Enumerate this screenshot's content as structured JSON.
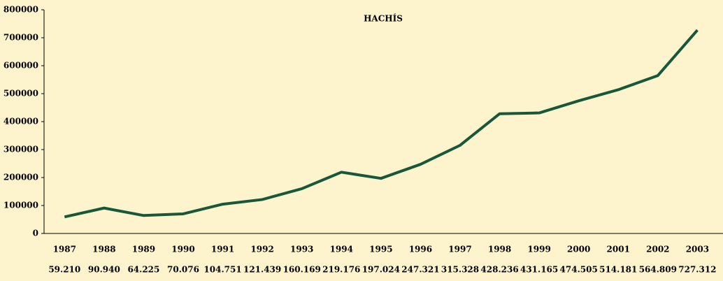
{
  "chart_data": {
    "type": "line",
    "title": "HACHÍS",
    "categories": [
      "1987",
      "1988",
      "1989",
      "1990",
      "1991",
      "1992",
      "1993",
      "1994",
      "1995",
      "1996",
      "1997",
      "1998",
      "1999",
      "2000",
      "2001",
      "2002",
      "2003"
    ],
    "series": [
      {
        "color": "#17573a",
        "values": [
          59210,
          90940,
          64225,
          70076,
          104751,
          121439,
          160169,
          219176,
          197024,
          247321,
          315328,
          428236,
          431165,
          474505,
          514181,
          564809,
          727312
        ],
        "value_labels": [
          "59.210",
          "90.940",
          "64.225",
          "70.076",
          "104.751",
          "121.439",
          "160.169",
          "219.176",
          "197.024",
          "247.321",
          "315.328",
          "428.236",
          "431.165",
          "474.505",
          "514.181",
          "564.809",
          "727.312"
        ]
      }
    ],
    "ylim": [
      0,
      800000
    ],
    "yticks": [
      0,
      100000,
      200000,
      300000,
      400000,
      500000,
      600000,
      700000,
      800000
    ],
    "grid": false
  }
}
